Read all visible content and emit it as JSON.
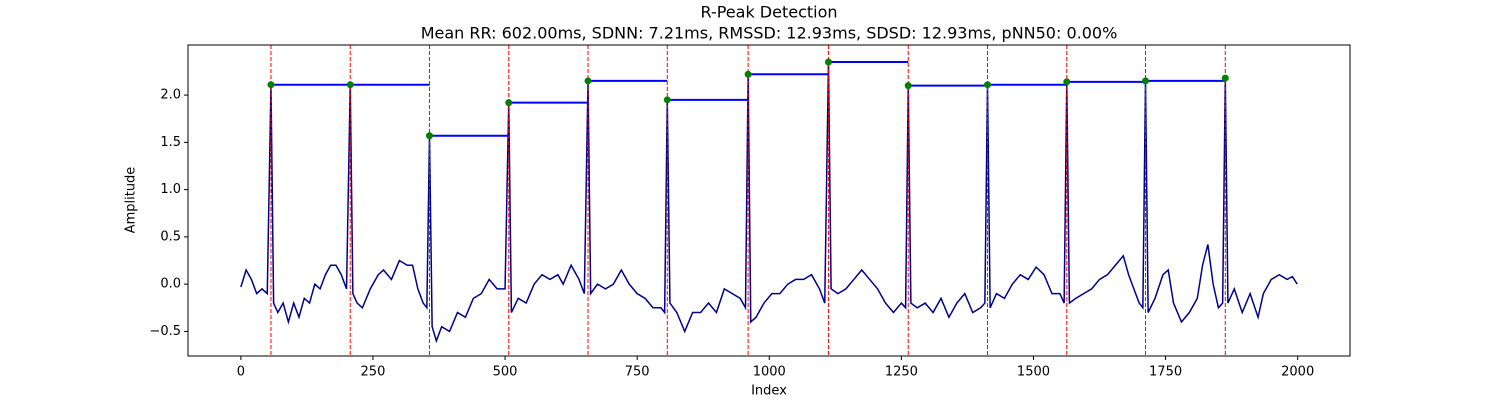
{
  "chart_data": {
    "type": "line",
    "title": "R-Peak Detection",
    "subtitle": "Mean RR: 602.00ms, SDNN: 7.21ms, RMSSD: 12.93ms, SDSD: 12.93ms, pNN50: 0.00%",
    "xlabel": "Index",
    "ylabel": "Amplitude",
    "xlim": [
      -100,
      2099
    ],
    "ylim": [
      -0.76,
      2.53
    ],
    "xticks": [
      0,
      250,
      500,
      750,
      1000,
      1250,
      1500,
      1750,
      2000
    ],
    "yticks": [
      {
        "value": -0.5,
        "label": "−0.5"
      },
      {
        "value": 0,
        "label": "0.0"
      },
      0.5,
      {
        "value": 1,
        "label": "1.0"
      },
      1.5,
      {
        "value": 2,
        "label": "2.0"
      }
    ],
    "series": [
      {
        "style": "line",
        "color": "#00008b",
        "x": [
          0,
          10,
          20,
          30,
          40,
          50,
          57,
          62,
          70,
          80,
          90,
          100,
          110,
          120,
          130,
          140,
          150,
          160,
          170,
          180,
          190,
          200,
          207,
          212,
          220,
          230,
          245,
          260,
          270,
          285,
          300,
          315,
          325,
          335,
          345,
          352,
          357,
          362,
          370,
          380,
          395,
          410,
          425,
          440,
          455,
          470,
          485,
          500,
          507,
          512,
          525,
          540,
          555,
          570,
          585,
          600,
          610,
          625,
          640,
          650,
          657,
          662,
          675,
          690,
          705,
          720,
          735,
          750,
          765,
          780,
          795,
          802,
          807,
          812,
          825,
          840,
          855,
          870,
          885,
          900,
          915,
          930,
          945,
          955,
          960,
          965,
          975,
          990,
          1005,
          1020,
          1035,
          1050,
          1065,
          1080,
          1095,
          1105,
          1112,
          1117,
          1130,
          1145,
          1160,
          1175,
          1190,
          1205,
          1220,
          1235,
          1250,
          1258,
          1263,
          1268,
          1280,
          1295,
          1310,
          1325,
          1340,
          1355,
          1370,
          1385,
          1400,
          1408,
          1413,
          1418,
          1430,
          1445,
          1460,
          1475,
          1490,
          1505,
          1520,
          1535,
          1550,
          1558,
          1563,
          1568,
          1580,
          1595,
          1610,
          1625,
          1640,
          1655,
          1670,
          1680,
          1690,
          1700,
          1707,
          1712,
          1717,
          1730,
          1745,
          1755,
          1765,
          1780,
          1795,
          1810,
          1820,
          1830,
          1840,
          1850,
          1858,
          1863,
          1868,
          1880,
          1895,
          1910,
          1925,
          1935,
          1950,
          1965,
          1980,
          1990,
          1999
        ],
        "values": [
          -0.03,
          0.15,
          0.05,
          -0.1,
          -0.05,
          -0.1,
          2.11,
          -0.2,
          -0.3,
          -0.2,
          -0.4,
          -0.2,
          -0.35,
          -0.15,
          -0.2,
          0.0,
          -0.05,
          0.1,
          0.2,
          0.2,
          0.1,
          -0.05,
          2.11,
          -0.1,
          -0.2,
          -0.25,
          -0.05,
          0.1,
          0.15,
          0.05,
          0.25,
          0.2,
          0.2,
          -0.05,
          -0.2,
          -0.25,
          1.57,
          -0.45,
          -0.6,
          -0.45,
          -0.5,
          -0.3,
          -0.35,
          -0.15,
          -0.1,
          0.05,
          -0.05,
          -0.05,
          1.92,
          -0.3,
          -0.15,
          -0.2,
          0.0,
          0.1,
          0.05,
          0.1,
          0.0,
          0.2,
          0.05,
          -0.1,
          2.15,
          -0.1,
          0.0,
          -0.05,
          0.0,
          0.15,
          0.0,
          -0.1,
          -0.15,
          -0.25,
          -0.25,
          -0.3,
          1.95,
          -0.2,
          -0.3,
          -0.5,
          -0.3,
          -0.3,
          -0.2,
          -0.3,
          -0.05,
          -0.1,
          -0.15,
          -0.25,
          2.22,
          -0.4,
          -0.35,
          -0.2,
          -0.1,
          -0.1,
          0.0,
          0.05,
          0.05,
          0.1,
          -0.05,
          -0.2,
          2.35,
          -0.05,
          -0.1,
          -0.05,
          0.05,
          0.15,
          0.05,
          -0.05,
          -0.2,
          -0.3,
          -0.2,
          -0.25,
          2.1,
          -0.2,
          -0.25,
          -0.2,
          -0.3,
          -0.15,
          -0.35,
          -0.2,
          -0.1,
          -0.3,
          -0.25,
          -0.2,
          2.11,
          -0.25,
          -0.1,
          -0.15,
          0.0,
          0.1,
          0.05,
          0.18,
          0.1,
          -0.1,
          -0.1,
          -0.2,
          2.14,
          -0.2,
          -0.15,
          -0.1,
          -0.05,
          0.05,
          0.1,
          0.2,
          0.3,
          0.1,
          -0.05,
          -0.2,
          -0.25,
          2.15,
          -0.3,
          -0.15,
          0.1,
          0.15,
          -0.2,
          -0.4,
          -0.3,
          -0.15,
          0.2,
          0.42,
          0.0,
          -0.25,
          -0.2,
          2.18,
          -0.2,
          -0.05,
          -0.3,
          -0.1,
          -0.35,
          -0.1,
          0.05,
          0.1,
          0.05,
          0.08,
          0.0
        ]
      },
      {
        "style": "peaks",
        "color": "#008000",
        "peak_line_color": "#ff0000",
        "interval_color": "#0000ff",
        "x": [
          57,
          207,
          357,
          507,
          657,
          807,
          960,
          1112,
          1263,
          1413,
          1563,
          1712,
          1863
        ],
        "values": [
          2.11,
          2.11,
          1.57,
          1.92,
          2.15,
          1.95,
          2.22,
          2.35,
          2.1,
          2.11,
          2.14,
          2.15,
          2.18
        ]
      }
    ]
  }
}
